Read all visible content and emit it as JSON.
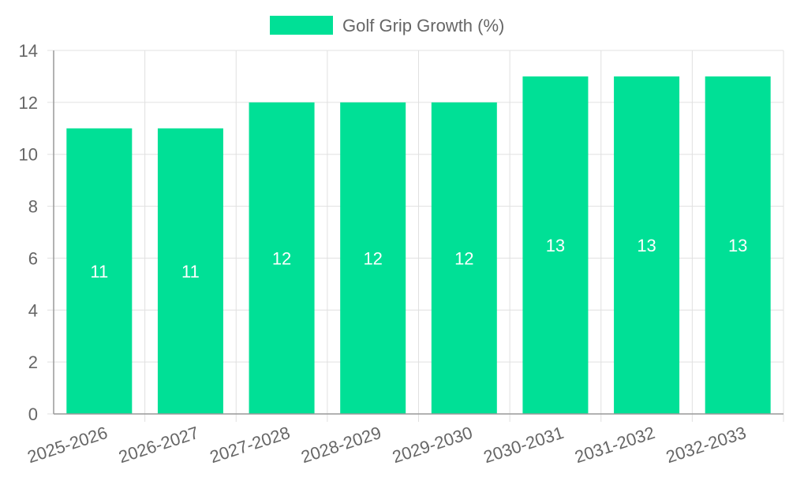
{
  "chart_data": {
    "type": "bar",
    "categories": [
      "2025-2026",
      "2026-2027",
      "2027-2028",
      "2028-2029",
      "2029-2030",
      "2030-2031",
      "2031-2032",
      "2032-2033"
    ],
    "series": [
      {
        "name": "Golf Grip Growth (%)",
        "values": [
          11,
          11,
          12,
          12,
          12,
          13,
          13,
          13
        ],
        "color": "#00E096"
      }
    ],
    "ylim": [
      0,
      14
    ],
    "yticks": [
      0,
      2,
      4,
      6,
      8,
      10,
      12,
      14
    ],
    "grid": true,
    "legend_position": "top",
    "data_labels": true,
    "data_label_color": "#ffffff",
    "axis_text_color": "#666666",
    "grid_color": "#e0e0e0"
  }
}
